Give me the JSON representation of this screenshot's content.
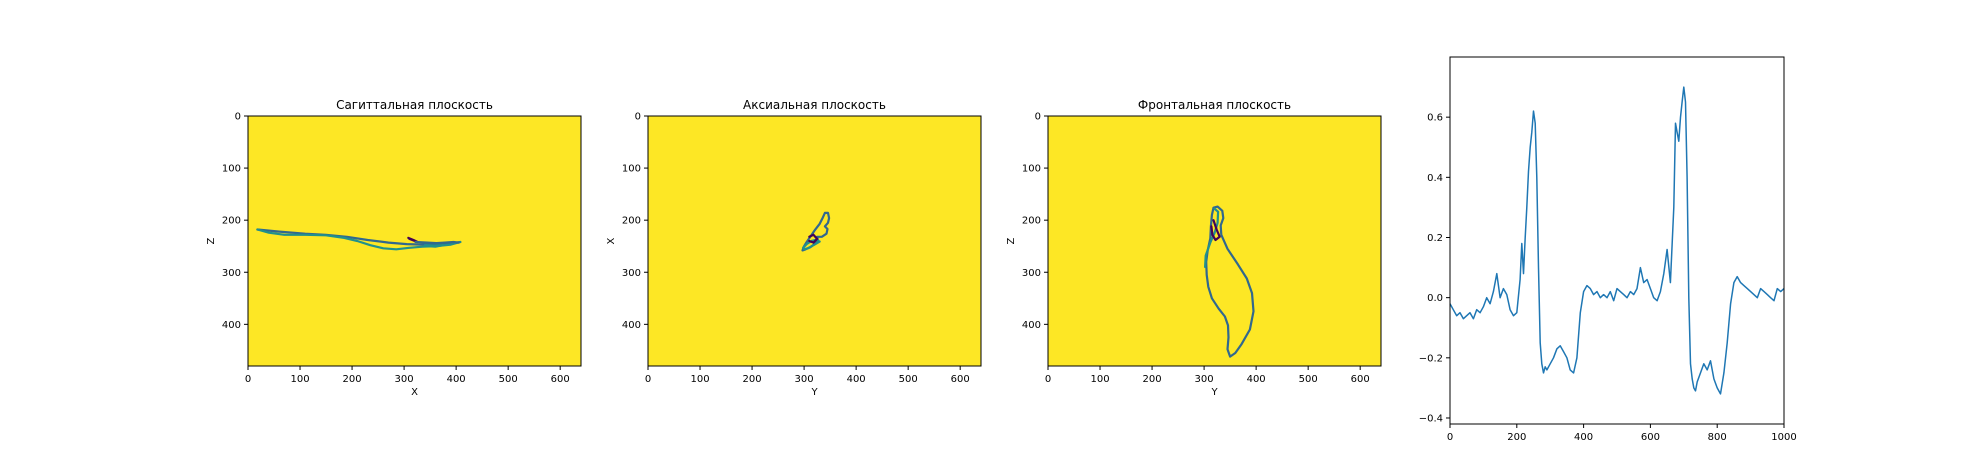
{
  "chart_data": [
    {
      "type": "image",
      "title": "Сагиттальная плоскость",
      "xlabel": "X",
      "ylabel": "Z",
      "xlim": [
        0,
        640
      ],
      "ylim": [
        480,
        0
      ],
      "xticks": [
        0,
        100,
        200,
        300,
        400,
        500,
        600
      ],
      "yticks": [
        0,
        100,
        200,
        300,
        400
      ],
      "background_color": "#fde725",
      "contour_colors": [
        "#31688e",
        "#21918c",
        "#440154"
      ],
      "contours": [
        [
          [
            18,
            218
          ],
          [
            60,
            222
          ],
          [
            110,
            226
          ],
          [
            150,
            228
          ],
          [
            190,
            232
          ],
          [
            230,
            238
          ],
          [
            270,
            243
          ],
          [
            305,
            246
          ],
          [
            335,
            247
          ],
          [
            365,
            246
          ],
          [
            395,
            244
          ],
          [
            408,
            242
          ]
        ],
        [
          [
            408,
            242
          ],
          [
            390,
            247
          ],
          [
            360,
            250
          ],
          [
            335,
            251
          ],
          [
            310,
            253
          ],
          [
            285,
            256
          ],
          [
            260,
            254
          ],
          [
            235,
            248
          ],
          [
            210,
            240
          ],
          [
            185,
            234
          ],
          [
            150,
            229
          ],
          [
            110,
            228
          ],
          [
            70,
            228
          ],
          [
            40,
            224
          ],
          [
            18,
            218
          ]
        ],
        [
          [
            308,
            234
          ],
          [
            318,
            238
          ],
          [
            326,
            242
          ],
          [
            318,
            239
          ],
          [
            310,
            236
          ]
        ],
        [
          [
            322,
            242
          ],
          [
            345,
            243
          ],
          [
            362,
            244
          ],
          [
            378,
            243
          ],
          [
            395,
            242
          ],
          [
            405,
            243
          ]
        ],
        [
          [
            340,
            248
          ],
          [
            360,
            249
          ],
          [
            375,
            248
          ],
          [
            360,
            251
          ],
          [
            345,
            250
          ]
        ]
      ]
    },
    {
      "type": "image",
      "title": "Аксиальная плоскость",
      "xlabel": "Y",
      "ylabel": "X",
      "xlim": [
        0,
        640
      ],
      "ylim": [
        480,
        0
      ],
      "xticks": [
        0,
        100,
        200,
        300,
        400,
        500,
        600
      ],
      "yticks": [
        0,
        100,
        200,
        300,
        400
      ],
      "background_color": "#fde725",
      "contour_colors": [
        "#31688e",
        "#21918c",
        "#440154"
      ],
      "contours": [
        [
          [
            297,
            258
          ],
          [
            300,
            250
          ],
          [
            305,
            242
          ],
          [
            312,
            232
          ],
          [
            320,
            220
          ],
          [
            330,
            207
          ],
          [
            336,
            195
          ],
          [
            340,
            186
          ],
          [
            346,
            186
          ],
          [
            348,
            196
          ],
          [
            346,
            205
          ],
          [
            340,
            212
          ],
          [
            345,
            217
          ],
          [
            343,
            226
          ],
          [
            334,
            232
          ],
          [
            325,
            232
          ],
          [
            327,
            240
          ],
          [
            320,
            246
          ],
          [
            312,
            252
          ],
          [
            303,
            256
          ],
          [
            297,
            258
          ]
        ],
        [
          [
            298,
            253
          ],
          [
            305,
            246
          ],
          [
            314,
            240
          ],
          [
            322,
            238
          ],
          [
            330,
            241
          ],
          [
            318,
            248
          ],
          [
            307,
            254
          ],
          [
            300,
            256
          ]
        ],
        [
          [
            310,
            232
          ],
          [
            318,
            228
          ],
          [
            325,
            236
          ],
          [
            318,
            243
          ],
          [
            310,
            240
          ]
        ]
      ]
    },
    {
      "type": "image",
      "title": "Фронтальная плоскость",
      "xlabel": "Y",
      "ylabel": "Z",
      "xlim": [
        0,
        640
      ],
      "ylim": [
        480,
        0
      ],
      "xticks": [
        0,
        100,
        200,
        300,
        400,
        500,
        600
      ],
      "yticks": [
        0,
        100,
        200,
        300,
        400
      ],
      "background_color": "#fde725",
      "contour_colors": [
        "#31688e",
        "#21918c",
        "#440154"
      ],
      "contours": [
        [
          [
            318,
            176
          ],
          [
            326,
            174
          ],
          [
            335,
            182
          ],
          [
            337,
            196
          ],
          [
            332,
            210
          ],
          [
            333,
            228
          ],
          [
            345,
            255
          ],
          [
            365,
            285
          ],
          [
            382,
            312
          ],
          [
            392,
            340
          ],
          [
            395,
            375
          ],
          [
            388,
            410
          ],
          [
            372,
            438
          ],
          [
            360,
            455
          ],
          [
            350,
            462
          ],
          [
            345,
            448
          ],
          [
            347,
            425
          ],
          [
            346,
            402
          ],
          [
            340,
            385
          ],
          [
            328,
            370
          ],
          [
            315,
            350
          ],
          [
            308,
            328
          ],
          [
            305,
            305
          ],
          [
            304,
            280
          ],
          [
            307,
            258
          ],
          [
            312,
            235
          ],
          [
            313,
            212
          ],
          [
            315,
            190
          ],
          [
            318,
            176
          ]
        ],
        [
          [
            320,
            178
          ],
          [
            327,
            184
          ],
          [
            326,
            205
          ],
          [
            320,
            225
          ],
          [
            312,
            243
          ],
          [
            303,
            268
          ],
          [
            302,
            290
          ]
        ],
        [
          [
            318,
            200
          ],
          [
            324,
            218
          ],
          [
            330,
            232
          ],
          [
            322,
            238
          ],
          [
            316,
            228
          ],
          [
            314,
            212
          ]
        ]
      ]
    },
    {
      "type": "line",
      "title": "",
      "xlabel": "",
      "ylabel": "",
      "xlim": [
        0,
        1000
      ],
      "ylim": [
        -0.42,
        0.8
      ],
      "xticks": [
        0,
        200,
        400,
        600,
        800,
        1000
      ],
      "yticks": [
        -0.4,
        -0.2,
        0.0,
        0.2,
        0.4,
        0.6
      ],
      "ytick_labels": [
        "−0.4",
        "−0.2",
        "0.0",
        "0.2",
        "0.4",
        "0.6"
      ],
      "grid": false,
      "color": "#1f77b4",
      "series": [
        {
          "x": [
            0,
            10,
            20,
            30,
            40,
            50,
            60,
            70,
            80,
            90,
            100,
            110,
            120,
            130,
            140,
            150,
            160,
            170,
            180,
            190,
            200,
            210,
            215,
            220,
            225,
            230,
            235,
            240,
            245,
            250,
            255,
            260,
            265,
            270,
            275,
            280,
            285,
            290,
            300,
            310,
            320,
            330,
            340,
            350,
            360,
            370,
            380,
            390,
            400,
            410,
            420,
            430,
            440,
            450,
            460,
            470,
            480,
            490,
            500,
            510,
            520,
            530,
            540,
            550,
            560,
            570,
            580,
            590,
            600,
            610,
            620,
            630,
            640,
            650,
            660,
            670,
            675,
            680,
            685,
            690,
            695,
            700,
            705,
            710,
            715,
            720,
            725,
            730,
            735,
            740,
            750,
            760,
            770,
            780,
            790,
            800,
            810,
            820,
            830,
            840,
            850,
            860,
            870,
            880,
            890,
            900,
            910,
            920,
            930,
            940,
            950,
            960,
            970,
            980,
            990,
            1000
          ],
          "y": [
            -0.02,
            -0.04,
            -0.06,
            -0.05,
            -0.07,
            -0.06,
            -0.05,
            -0.07,
            -0.04,
            -0.05,
            -0.03,
            0.0,
            -0.02,
            0.02,
            0.08,
            0.0,
            0.03,
            0.01,
            -0.04,
            -0.06,
            -0.05,
            0.06,
            0.18,
            0.08,
            0.2,
            0.3,
            0.42,
            0.5,
            0.55,
            0.62,
            0.58,
            0.4,
            0.1,
            -0.15,
            -0.22,
            -0.25,
            -0.23,
            -0.24,
            -0.22,
            -0.2,
            -0.17,
            -0.16,
            -0.18,
            -0.2,
            -0.24,
            -0.25,
            -0.2,
            -0.05,
            0.02,
            0.04,
            0.03,
            0.01,
            0.02,
            0.0,
            0.01,
            0.0,
            0.02,
            -0.01,
            0.03,
            0.02,
            0.01,
            0.0,
            0.02,
            0.01,
            0.03,
            0.1,
            0.05,
            0.06,
            0.03,
            0.0,
            -0.01,
            0.02,
            0.08,
            0.16,
            0.05,
            0.3,
            0.58,
            0.55,
            0.52,
            0.6,
            0.65,
            0.7,
            0.65,
            0.4,
            0.0,
            -0.22,
            -0.27,
            -0.3,
            -0.31,
            -0.28,
            -0.25,
            -0.22,
            -0.24,
            -0.21,
            -0.27,
            -0.3,
            -0.32,
            -0.25,
            -0.15,
            -0.02,
            0.05,
            0.07,
            0.05,
            0.04,
            0.03,
            0.02,
            0.01,
            0.0,
            0.03,
            0.02,
            0.01,
            0.0,
            -0.01,
            0.03,
            0.02,
            0.03
          ]
        }
      ]
    }
  ]
}
